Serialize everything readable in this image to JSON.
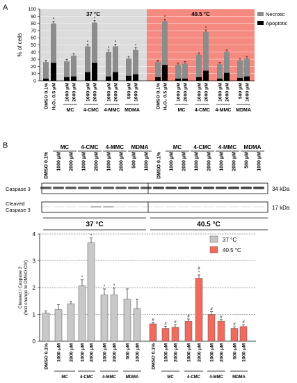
{
  "panel_a": {
    "label": "A"
  },
  "panel_b": {
    "label": "B"
  },
  "colors": {
    "necrotic": "#8c8c8c",
    "apoptotic": "#000000",
    "bg37": "#dcdcdc",
    "bg405": "#f58b80",
    "bar37": "#c8c8c8",
    "bar405": "#f26a5e"
  },
  "chart_data": [
    {
      "type": "bar",
      "stacked": true,
      "ylabel": "% of cells",
      "ylim": [
        0,
        100
      ],
      "yticks": [
        0,
        10,
        20,
        30,
        40,
        50,
        60,
        70,
        80,
        90,
        100
      ],
      "legend": {
        "position": "top-right",
        "items": [
          "Necrotic",
          "Apoptotic"
        ]
      },
      "temperatures": [
        "37 °C",
        "40.5 °C"
      ],
      "categories": [
        "DMSO 0.1%",
        "H₂O₂ 0.5 μM",
        "1000 μM",
        "2000 μM",
        "1000 μM",
        "2000 μM",
        "1000 μM",
        "2000 μM",
        "500 μM",
        "1000 μM"
      ],
      "groups": [
        {
          "label": "",
          "members": [
            0,
            1
          ]
        },
        {
          "label": "MC",
          "members": [
            2,
            3
          ]
        },
        {
          "label": "4-CMC",
          "members": [
            4,
            5
          ]
        },
        {
          "label": "4-MMC",
          "members": [
            6,
            7
          ]
        },
        {
          "label": "MDMA",
          "members": [
            8,
            9
          ]
        }
      ],
      "series": [
        {
          "name": "Necrotic",
          "total_37": [
            26,
            80,
            27,
            35,
            48,
            81,
            40,
            48,
            31,
            43
          ],
          "total_405": [
            26,
            83,
            22,
            24,
            36,
            68,
            23,
            40,
            28,
            31
          ]
        },
        {
          "name": "Apoptotic",
          "values_37": [
            3,
            25,
            5,
            6,
            12,
            25,
            6,
            12,
            7,
            9
          ],
          "values_405": [
            5,
            22,
            3,
            3,
            5,
            14,
            3,
            11,
            4,
            6
          ]
        }
      ],
      "significance_37": [
        false,
        true,
        false,
        false,
        true,
        true,
        true,
        true,
        false,
        true
      ],
      "significance_405": [
        false,
        true,
        false,
        false,
        false,
        true,
        false,
        false,
        false,
        false
      ]
    },
    {
      "type": "bar",
      "ylabel": "Cleaved / Caspase 3\n(fold change to DMSO Ctrl)",
      "ylim": [
        0,
        4
      ],
      "yticks": [
        0,
        1,
        2,
        3,
        4
      ],
      "legend": {
        "position": "top-right",
        "items": [
          "37 °C",
          "40.5 °C"
        ]
      },
      "categories": [
        "DMSO 0.1%",
        "1000 μM",
        "2000 μM",
        "1000 μM",
        "2000 μM",
        "1000 μM",
        "2000 μM",
        "500 μM",
        "1000 μM"
      ],
      "groups": [
        {
          "label": "",
          "members": [
            0
          ]
        },
        {
          "label": "MC",
          "members": [
            1,
            2
          ]
        },
        {
          "label": "4-CMC",
          "members": [
            3,
            4
          ]
        },
        {
          "label": "4-MMC",
          "members": [
            5,
            6
          ]
        },
        {
          "label": "MDMA",
          "members": [
            7,
            8
          ]
        }
      ],
      "series": [
        {
          "name": "37 °C",
          "values": [
            1.05,
            1.18,
            1.4,
            2.07,
            3.67,
            1.73,
            1.73,
            1.57,
            1.22
          ],
          "errors": [
            0.08,
            0.18,
            0.08,
            0.22,
            0.18,
            0.22,
            0.25,
            0.38,
            0.35
          ],
          "marks": [
            "",
            "",
            "",
            "*",
            "*",
            "*",
            "*",
            "",
            ""
          ]
        },
        {
          "name": "40.5 °C",
          "values": [
            0.65,
            0.48,
            0.52,
            0.75,
            2.35,
            1.0,
            0.75,
            0.48,
            0.55
          ],
          "errors": [
            0.05,
            0.08,
            0.1,
            0.08,
            0.12,
            0.1,
            0.06,
            0.05,
            0.07
          ],
          "marks": [
            "#",
            "#",
            "#",
            "#",
            "#\n*",
            "#",
            "#",
            "#",
            "#"
          ]
        }
      ]
    }
  ],
  "western": {
    "drugs": [
      "MC",
      "4-CMC",
      "4-MMC",
      "MDMA"
    ],
    "lanes": [
      "DMSO 0.1%",
      "1000 μM",
      "2000 μM",
      "1000 μM",
      "2000 μM",
      "1000 μM",
      "2000 μM",
      "500 μM",
      "1000 μM"
    ],
    "bands": [
      {
        "label": "Caspase 3",
        "kda": "34 kDa"
      },
      {
        "label": "Cleaved\nCaspase 3",
        "kda": "17 kDa"
      }
    ],
    "temperatures": [
      "37 °C",
      "40.5 °C"
    ]
  }
}
